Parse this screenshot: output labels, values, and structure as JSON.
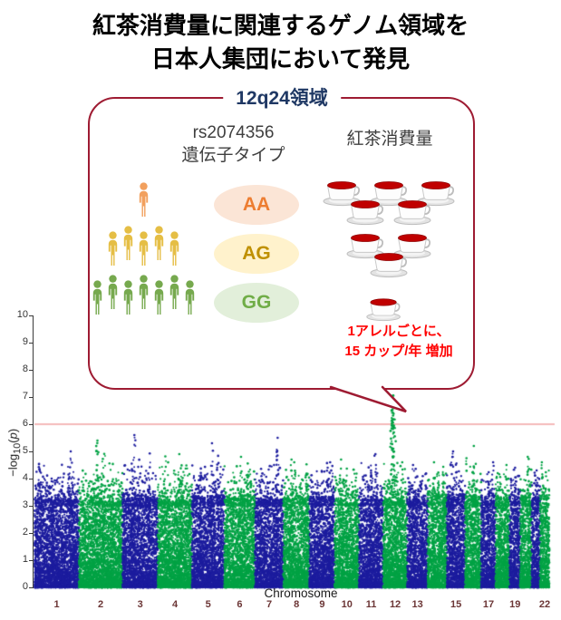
{
  "title": {
    "line1": "紅茶消費量に関連するゲノム領域を",
    "line2": "日本人集団において発見"
  },
  "bubble": {
    "label": "12q24領域",
    "label_color": "#1F3864",
    "border_color": "#9E1B32",
    "col_genotype_line1": "rs2074356",
    "col_genotype_line2": "遺伝子タイプ",
    "col_cups_header": "紅茶消費量",
    "cup_fill": "#C00000",
    "rows": [
      {
        "genotype": "AA",
        "person_count": 1,
        "person_color": "#F2A05E",
        "pill_bg": "#FBE5D6",
        "pill_text": "#ED7D31",
        "cup_count": 5
      },
      {
        "genotype": "AG",
        "person_count": 5,
        "person_color": "#E5BE45",
        "pill_bg": "#FFF2CC",
        "pill_text": "#BF9000",
        "cup_count": 3
      },
      {
        "genotype": "GG",
        "person_count": 7,
        "person_color": "#76A94E",
        "pill_bg": "#E2EFDA",
        "pill_text": "#70AD47",
        "cup_count": 1
      }
    ],
    "annotation": {
      "line1": "1アレルごとに、",
      "line2": "15 カップ/年 増加",
      "color": "#FF0000"
    }
  },
  "chart_data": {
    "type": "scatter",
    "subtype": "manhattan",
    "xlabel": "Chromosome",
    "ylabel": "−log10(p)",
    "ylabel_parts": {
      "pre": "−log",
      "sub": "10",
      "open": "(",
      "var": "p",
      "close": ")"
    },
    "ylim": [
      0,
      10
    ],
    "yticks": [
      0,
      1,
      2,
      3,
      4,
      5,
      6,
      7,
      8,
      9,
      10
    ],
    "significance_line_y": 6,
    "xtick_chromosomes": [
      1,
      2,
      3,
      4,
      5,
      6,
      7,
      8,
      9,
      10,
      11,
      12,
      13,
      15,
      17,
      19,
      22
    ],
    "colors": {
      "odd_chrom": "#1C1C9E",
      "even_chrom": "#00A244",
      "significance_line": "#F2A2A2",
      "xtick_label": "#6B3535",
      "axis": "#3A3A3A"
    },
    "chromosomes": [
      {
        "chr": 1,
        "rel_length": 249,
        "color": "#1C1C9E",
        "peak": 5.0
      },
      {
        "chr": 2,
        "rel_length": 243,
        "color": "#00A244",
        "peak": 5.4
      },
      {
        "chr": 3,
        "rel_length": 198,
        "color": "#1C1C9E",
        "peak": 5.6
      },
      {
        "chr": 4,
        "rel_length": 191,
        "color": "#00A244",
        "peak": 4.9
      },
      {
        "chr": 5,
        "rel_length": 181,
        "color": "#1C1C9E",
        "peak": 5.3
      },
      {
        "chr": 6,
        "rel_length": 171,
        "color": "#00A244",
        "peak": 4.8
      },
      {
        "chr": 7,
        "rel_length": 159,
        "color": "#1C1C9E",
        "peak": 5.5
      },
      {
        "chr": 8,
        "rel_length": 146,
        "color": "#00A244",
        "peak": 4.7
      },
      {
        "chr": 9,
        "rel_length": 141,
        "color": "#1C1C9E",
        "peak": 4.6
      },
      {
        "chr": 10,
        "rel_length": 136,
        "color": "#00A244",
        "peak": 4.7
      },
      {
        "chr": 11,
        "rel_length": 135,
        "color": "#1C1C9E",
        "peak": 4.9
      },
      {
        "chr": 12,
        "rel_length": 134,
        "color": "#00A244",
        "peak": 7.05
      },
      {
        "chr": 13,
        "rel_length": 115,
        "color": "#1C1C9E",
        "peak": 4.5
      },
      {
        "chr": 14,
        "rel_length": 107,
        "color": "#00A244",
        "peak": 4.6
      },
      {
        "chr": 15,
        "rel_length": 102,
        "color": "#1C1C9E",
        "peak": 5.0
      },
      {
        "chr": 16,
        "rel_length": 90,
        "color": "#00A244",
        "peak": 5.2
      },
      {
        "chr": 17,
        "rel_length": 81,
        "color": "#1C1C9E",
        "peak": 4.6
      },
      {
        "chr": 18,
        "rel_length": 78,
        "color": "#00A244",
        "peak": 4.5
      },
      {
        "chr": 19,
        "rel_length": 59,
        "color": "#1C1C9E",
        "peak": 4.4
      },
      {
        "chr": 20,
        "rel_length": 63,
        "color": "#00A244",
        "peak": 4.8
      },
      {
        "chr": 21,
        "rel_length": 48,
        "color": "#1C1C9E",
        "peak": 4.3
      },
      {
        "chr": 22,
        "rel_length": 51,
        "color": "#00A244",
        "peak": 4.6
      }
    ],
    "top_hit": {
      "chr": 12,
      "region": "12q24",
      "snp": "rs2074356",
      "value": 7.05,
      "position_frac": 0.4
    }
  }
}
